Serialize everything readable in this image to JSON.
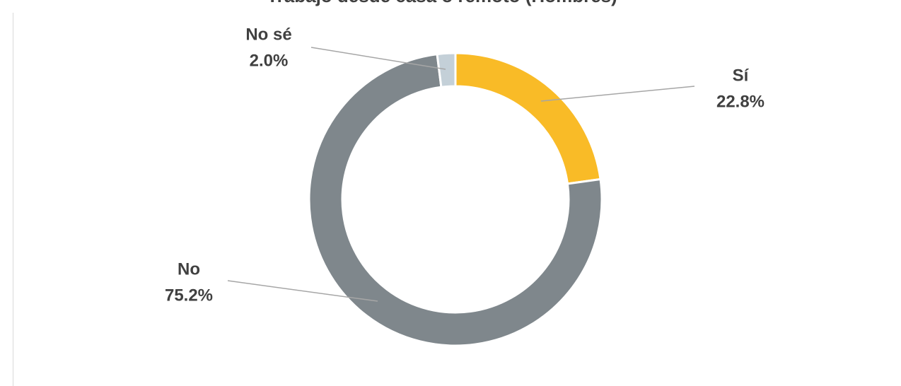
{
  "chart_data": {
    "type": "donut",
    "title": "Trabajo desde casa o remoto (Hombres)",
    "categories": [
      "Sí",
      "No",
      "No sé"
    ],
    "values": [
      22.8,
      75.2,
      2.0
    ],
    "value_labels": [
      "22.8%",
      "75.2%",
      "2.0%"
    ],
    "colors": [
      "#F9BB27",
      "#7F878C",
      "#C4D0D8"
    ]
  }
}
